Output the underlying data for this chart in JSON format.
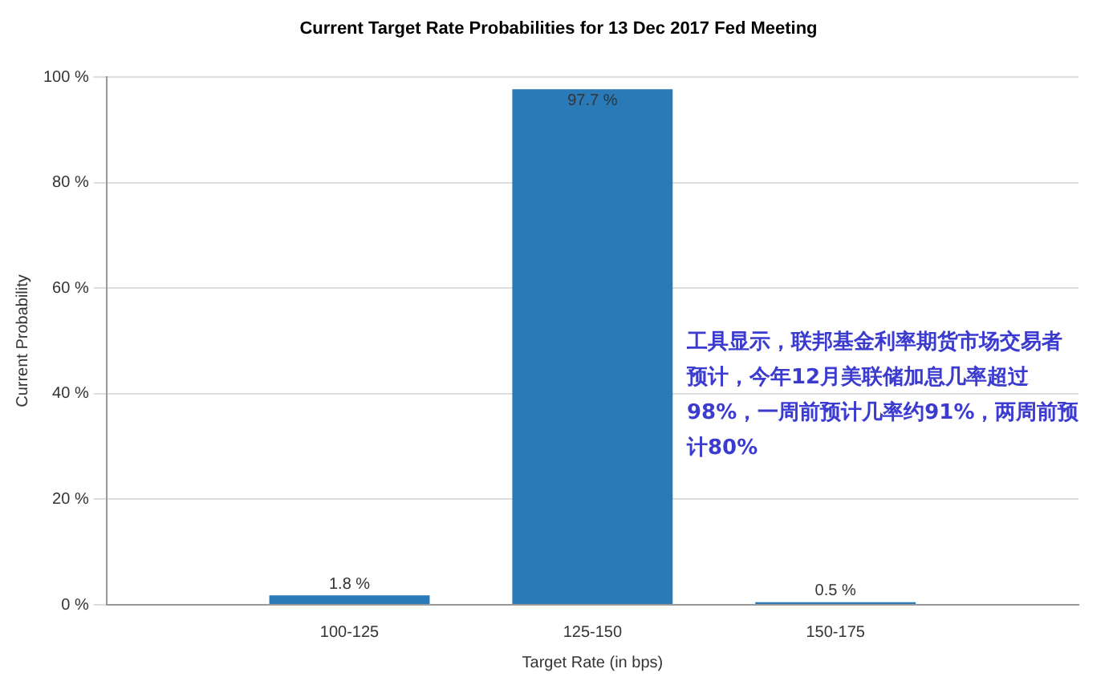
{
  "chart_data": {
    "type": "bar",
    "title": "Current Target Rate Probabilities for 13 Dec 2017 Fed Meeting",
    "xlabel": "Target Rate (in bps)",
    "ylabel": "Current Probability",
    "categories": [
      "100-125",
      "125-150",
      "150-175"
    ],
    "values": [
      1.8,
      97.7,
      0.5
    ],
    "color": "#2a7ab8",
    "value_labels": [
      "1.8 %",
      "97.7 %",
      "0.5 %"
    ],
    "ylim": [
      0,
      100
    ],
    "yticks": [
      {
        "value": 0,
        "label": "0 %"
      },
      {
        "value": 20,
        "label": "20 %"
      },
      {
        "value": 40,
        "label": "40 %"
      },
      {
        "value": 60,
        "label": "60 %"
      },
      {
        "value": 80,
        "label": "80 %"
      },
      {
        "value": 100,
        "label": "100 %"
      }
    ],
    "grid": "y",
    "legend": false,
    "annotations": [
      "工具显示，联邦基金利率期货市场交易者预计，今年12月美联储加息几率超过98%，一周前预计几率约91%，两周前预计80%"
    ]
  }
}
